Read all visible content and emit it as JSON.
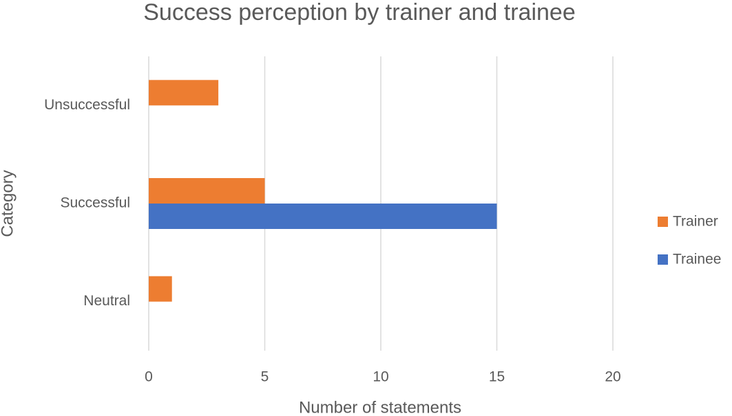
{
  "chart_data": {
    "type": "bar",
    "orientation": "horizontal",
    "title": "Success perception by trainer and trainee",
    "x_label": "Number of statements",
    "y_label": "Category",
    "categories": [
      "Unsuccessful",
      "Successful",
      "Neutral"
    ],
    "series": [
      {
        "name": "Trainer",
        "color": "#ed7d31",
        "values": [
          3,
          5,
          1
        ]
      },
      {
        "name": "Trainee",
        "color": "#4472c4",
        "values": [
          0,
          15,
          0
        ]
      }
    ],
    "xlim": [
      0,
      20
    ],
    "xticks": [
      0,
      5,
      10,
      15,
      20
    ],
    "grid": true,
    "legend": "right"
  }
}
